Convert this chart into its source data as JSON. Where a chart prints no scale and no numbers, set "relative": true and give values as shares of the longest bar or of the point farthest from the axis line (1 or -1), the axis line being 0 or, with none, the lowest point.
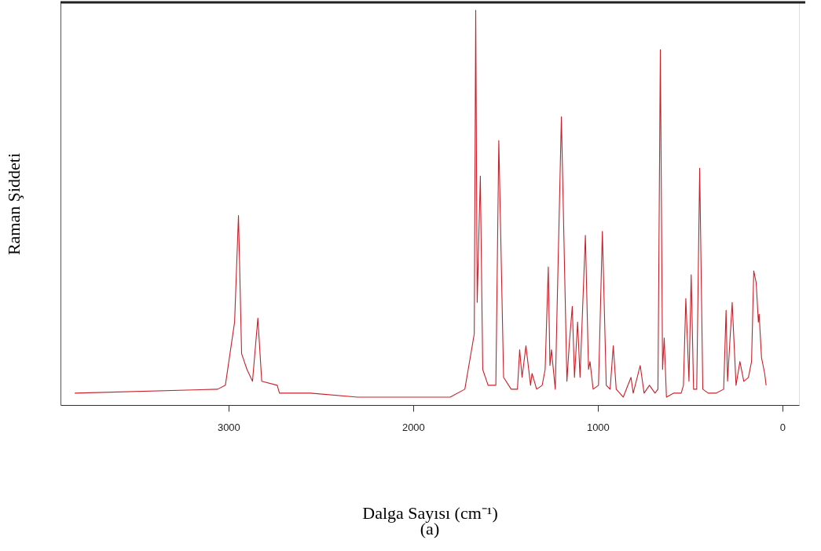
{
  "chart_data": {
    "type": "line",
    "relative": true,
    "xlabel": "Dalga Sayısı (cm⁻¹)",
    "ylabel": "Raman Şiddeti",
    "annotations": [
      "(a)"
    ],
    "xlim": [
      3910,
      -90
    ],
    "xticks": [
      3000,
      2000,
      1000,
      0
    ],
    "tick_labels": "x",
    "grid": false,
    "marker": "none",
    "line_style": "solid",
    "series": [
      {
        "color": "#c8202a",
        "x": [
          3833,
          3059,
          3017,
          2967,
          2946,
          2929,
          2900,
          2870,
          2841,
          2820,
          2736,
          2724,
          2556,
          2300,
          2000,
          1800,
          1720,
          1669,
          1661,
          1653,
          1636,
          1623,
          1594,
          1552,
          1536,
          1510,
          1469,
          1435,
          1423,
          1410,
          1389,
          1364,
          1356,
          1331,
          1301,
          1285,
          1268,
          1259,
          1251,
          1230,
          1197,
          1167,
          1155,
          1138,
          1126,
          1109,
          1096,
          1067,
          1050,
          1042,
          1025,
          996,
          975,
          954,
          933,
          916,
          900,
          862,
          820,
          808,
          770,
          749,
          720,
          690,
          674,
          661,
          649,
          640,
          628,
          590,
          548,
          536,
          523,
          506,
          494,
          481,
          464,
          448,
          431,
          402,
          360,
          318,
          305,
          297,
          272,
          251,
          230,
          209,
          184,
          167,
          155,
          142,
          130,
          126,
          113,
          96,
          88
        ],
        "values": [
          0.03,
          0.04,
          0.05,
          0.21,
          0.48,
          0.13,
          0.09,
          0.06,
          0.22,
          0.06,
          0.05,
          0.03,
          0.03,
          0.02,
          0.02,
          0.02,
          0.04,
          0.18,
          1.0,
          0.26,
          0.58,
          0.09,
          0.05,
          0.05,
          0.67,
          0.07,
          0.04,
          0.04,
          0.14,
          0.07,
          0.15,
          0.05,
          0.08,
          0.04,
          0.05,
          0.09,
          0.35,
          0.1,
          0.14,
          0.04,
          0.73,
          0.06,
          0.15,
          0.25,
          0.07,
          0.21,
          0.07,
          0.43,
          0.09,
          0.11,
          0.04,
          0.05,
          0.44,
          0.05,
          0.04,
          0.15,
          0.04,
          0.02,
          0.07,
          0.03,
          0.1,
          0.03,
          0.05,
          0.03,
          0.04,
          0.9,
          0.09,
          0.17,
          0.02,
          0.03,
          0.03,
          0.05,
          0.27,
          0.06,
          0.33,
          0.04,
          0.04,
          0.6,
          0.04,
          0.03,
          0.03,
          0.04,
          0.24,
          0.06,
          0.26,
          0.05,
          0.11,
          0.06,
          0.07,
          0.11,
          0.34,
          0.31,
          0.21,
          0.23,
          0.12,
          0.08,
          0.05
        ]
      }
    ]
  }
}
